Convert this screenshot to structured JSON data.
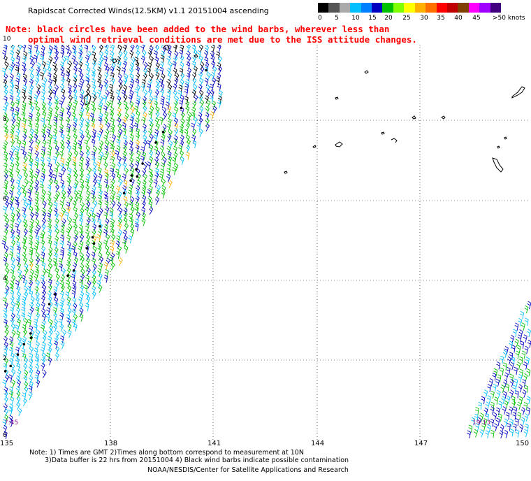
{
  "title": "Rapidscat Corrected Winds(12.5KM) v1.1 20151004 ascending",
  "note_line1": "Note: black circles have been added to the wind barbs, wherever less than",
  "note_line2": "optimal wind retrieval conditions are met due to the ISS attitude changes.",
  "speed_scale": {
    "labels": [
      "0",
      "5",
      "10",
      "15",
      "20",
      "25",
      "30",
      "35",
      "40",
      "45",
      ">50 knots"
    ],
    "colors": [
      "#000000",
      "#555555",
      "#aaaaaa",
      "#00bfff",
      "#0080ff",
      "#0000c0",
      "#00c000",
      "#80ff00",
      "#ffff00",
      "#ffb000",
      "#ff7000",
      "#ff0000",
      "#c00000",
      "#804000",
      "#ff00ff",
      "#a000ff",
      "#400080"
    ]
  },
  "x_axis_labels": [
    "135",
    "138",
    "141",
    "144",
    "147",
    "150"
  ],
  "y_axis_labels": [
    "10",
    "8",
    "6",
    "4",
    "2",
    "0"
  ],
  "time_labels": [
    "7:45",
    "19:13"
  ],
  "footer_line1": "Note: 1) Times are GMT 2)Times along bottom correspond to measurement at 10N",
  "footer_line2": "3)Data buffer is 22 hrs from 20151004 4) Black wind barbs indicate possible contamination",
  "footer_line3": "NOAA/NESDIS/Center for Satellite Applications and Research"
}
